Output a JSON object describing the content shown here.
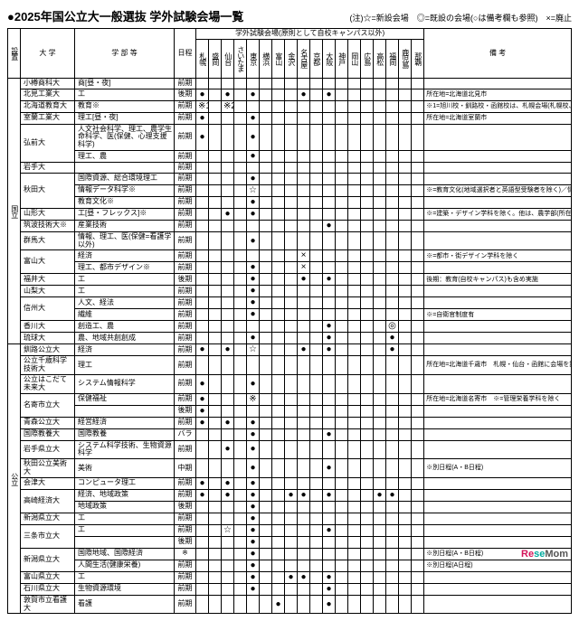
{
  "title": "●2025年国公立大一般選抜 学外試験会場一覧",
  "legend": "(注)☆=新設会場　◎=既設の会場(○は備考欄も参照)　×=廃止",
  "group_header": "学外試験会場(原則として自校キャンパス以外)",
  "headers": {
    "set": "設置",
    "univ": "大 学",
    "dept": "学 部 等",
    "sched": "日程",
    "note": "備 考"
  },
  "venues": [
    "札幌",
    "盛岡",
    "仙台",
    "さいたま",
    "東京",
    "横浜",
    "富山",
    "金沢",
    "名古屋",
    "京都",
    "大阪",
    "神戸",
    "岡山",
    "広島",
    "高松",
    "福岡",
    "鹿児島",
    "那覇"
  ],
  "marks": {
    "d": "●",
    "o": "○",
    "db": "◎",
    "s": "☆",
    "x": "×",
    "s1": "※1",
    "s2": "※2",
    "sm": "※"
  },
  "set_labels": {
    "nat": "国立",
    "pub": "公立"
  },
  "rows": [
    {
      "set": "nat",
      "u": "小樽商科大",
      "d": "商[昼・夜]",
      "sc": "前期",
      "v": {},
      "n": ""
    },
    {
      "u": "北見工業大",
      "d": "工",
      "sc": "後期",
      "v": {
        "0": "d",
        "2": "d",
        "4": "d",
        "8": "d",
        "10": "d"
      },
      "n": "所在地=北海道北見市"
    },
    {
      "u": "北海道教育大",
      "d": "教育※",
      "sc": "前期",
      "v": {
        "0": "s1",
        "2": "s2"
      },
      "n": "※1=旭川校・釧路校・函館校は、札幌会場(札幌校、札幌市立大)を設置。※2=札幌校・岩見沢校=保健体育教育専攻を除く／旭川校=英語教育専攻・保健体育教育専攻を除く／※2=札幌校・岩見沢(保健体育教育専攻)、旭川校・釧路=保健体育教育専攻、岩見沢校を除く"
    },
    {
      "u": "室蘭工業大",
      "d": "理工[昼・夜]",
      "sc": "前期",
      "v": {
        "0": "d",
        "4": "d"
      },
      "n": "所在地=北海道室蘭市"
    },
    {
      "u": "弘前大",
      "d": "人文社会科学、理工、農学生命科学、医(保健、心理支援科学)",
      "sc": "前期",
      "v": {
        "0": "d",
        "4": "d"
      },
      "n": ""
    },
    {
      "d": "理工、農",
      "sc": "前期",
      "v": {
        "4": "d"
      },
      "n": ""
    },
    {
      "u": "岩手大",
      "d": "",
      "sc": "前期",
      "v": {},
      "n": ""
    },
    {
      "u": "秋田大",
      "d": "国際資源、総合環境理工",
      "sc": "前期",
      "v": {
        "4": "d"
      },
      "n": ""
    },
    {
      "d": "情報データ科学※",
      "sc": "前期",
      "v": {
        "4": "s"
      },
      "n": "※=教育文化(地域選択者と英語型受験者を除く)／情報データ科学は25年新設学部"
    },
    {
      "d": "教育文化※",
      "sc": "前期",
      "v": {
        "4": "d"
      },
      "n": ""
    },
    {
      "u": "山形大",
      "d": "工[昼・フレックス]※",
      "sc": "前期",
      "v": {
        "2": "d",
        "4": "d"
      },
      "n": "※=建築・デザイン学科を除く。他は、農学部(所在地=山形県鶴岡市)を含め、山形市(自校キャンパス)で実施"
    },
    {
      "u": "筑波技術大※",
      "d": "産業技術",
      "sc": "前期",
      "v": {
        "10": "d"
      },
      "n": ""
    },
    {
      "u": "群馬大",
      "d": "情報、理工、医(保健=看護学以外)",
      "sc": "前期",
      "v": {
        "4": "d"
      },
      "n": ""
    },
    {
      "u": "富山大",
      "d": "経済",
      "sc": "前期",
      "v": {
        "8": "x"
      },
      "n": "※=都市・街デザイン学科を除く"
    },
    {
      "d": "理工、都市デザイン※",
      "sc": "前期",
      "v": {
        "4": "d",
        "8": "x"
      },
      "n": ""
    },
    {
      "u": "福井大",
      "d": "工",
      "sc": "後期",
      "v": {
        "4": "d",
        "8": "d",
        "10": "d"
      },
      "n": "後期：教育(自校キャンパス)も含め実施"
    },
    {
      "u": "山梨大",
      "d": "工",
      "sc": "前期",
      "v": {
        "4": "d"
      },
      "n": ""
    },
    {
      "u": "信州大",
      "d": "人文、経法",
      "sc": "前期",
      "v": {
        "4": "d"
      },
      "n": ""
    },
    {
      "d": "繊維",
      "sc": "前期",
      "v": {
        "4": "d"
      },
      "n": "※=自衛官制度有"
    },
    {
      "u": "香川大",
      "d": "創造工、農",
      "sc": "前期",
      "v": {
        "10": "d",
        "15": "db"
      },
      "n": ""
    },
    {
      "u": "琉球大",
      "d": "農、地域共創創成",
      "sc": "前期",
      "v": {
        "4": "d",
        "10": "d",
        "15": "d"
      },
      "n": ""
    },
    {
      "set": "pub",
      "u": "釧路公立大",
      "d": "経済",
      "sc": "前期",
      "v": {
        "0": "d",
        "2": "d",
        "4": "s",
        "8": "d",
        "10": "d",
        "15": "d"
      },
      "n": ""
    },
    {
      "u": "公立千歳科学技術大",
      "d": "理工",
      "sc": "前期",
      "v": {},
      "n": "所在地=北海道千歳市　札幌・仙台・函館に会場を設置"
    },
    {
      "u": "公立はこだて未来大",
      "d": "システム情報科学",
      "sc": "前期",
      "v": {
        "0": "d",
        "4": "d"
      },
      "n": ""
    },
    {
      "u": "名寄市立大",
      "d": "保健福祉",
      "sc": "前期",
      "v": {
        "0": "d",
        "4": "sm"
      },
      "n": "所在地=北海道名寄市　※=管理栄養学科を除く"
    },
    {
      "d": "",
      "sc": "後期",
      "v": {
        "0": "d"
      },
      "n": ""
    },
    {
      "u": "青森公立大",
      "d": "経営経済",
      "sc": "前期",
      "v": {
        "0": "d",
        "2": "d",
        "4": "d"
      },
      "n": ""
    },
    {
      "u": "国際教養大",
      "d": "国際教養",
      "sc": "バラ",
      "v": {
        "4": "d",
        "10": "d"
      },
      "n": ""
    },
    {
      "u": "岩手県立大",
      "d": "システム科学技術、生物資源科学",
      "sc": "前期",
      "v": {
        "2": "d",
        "4": "d"
      },
      "n": ""
    },
    {
      "u": "秋田公立美術大",
      "d": "美術",
      "sc": "中期",
      "v": {
        "4": "d",
        "10": "d"
      },
      "n": "※別日程(A・B日程)"
    },
    {
      "u": "会津大",
      "d": "コンピュータ理工",
      "sc": "前期",
      "v": {
        "0": "d",
        "2": "d",
        "4": "d"
      },
      "n": ""
    },
    {
      "u": "高崎経済大",
      "d": "経済、地域政策",
      "sc": "前期",
      "v": {
        "0": "d",
        "2": "d",
        "4": "d",
        "7": "d",
        "8": "d",
        "10": "d",
        "14": "d",
        "15": "d"
      },
      "n": ""
    },
    {
      "d": "地域政策",
      "sc": "後期",
      "v": {
        "4": "d"
      },
      "n": ""
    },
    {
      "u": "新潟県立大",
      "d": "工",
      "sc": "前期",
      "v": {
        "4": "d"
      },
      "n": ""
    },
    {
      "u": "三条市立大",
      "d": "工",
      "sc": "前期",
      "v": {
        "2": "s",
        "4": "d",
        "10": "d"
      },
      "n": ""
    },
    {
      "d": "",
      "sc": "後期",
      "v": {
        "4": "d"
      },
      "n": ""
    },
    {
      "u": "新潟県立大",
      "d": "国際地域、国際経済",
      "sc": "※",
      "v": {
        "4": "d"
      },
      "n": "※別日程(A・B日程)"
    },
    {
      "d": "人間生活(健康栄養)",
      "sc": "前期",
      "v": {
        "4": "d"
      },
      "n": "※別日程(A日程)"
    },
    {
      "u": "富山県立大",
      "d": "工",
      "sc": "前期",
      "v": {
        "4": "d",
        "7": "d",
        "8": "d",
        "10": "d"
      },
      "n": ""
    },
    {
      "u": "石川県立大",
      "d": "生物資源環境",
      "sc": "前期",
      "v": {
        "4": "d",
        "10": "d"
      },
      "n": ""
    },
    {
      "u": "敦賀市立看護大",
      "d": "看護",
      "sc": "前期",
      "v": {
        "6": "d",
        "10": "d"
      },
      "n": ""
    }
  ],
  "logo": {
    "re": "Re",
    "se": "se",
    "mom": "Mom"
  }
}
